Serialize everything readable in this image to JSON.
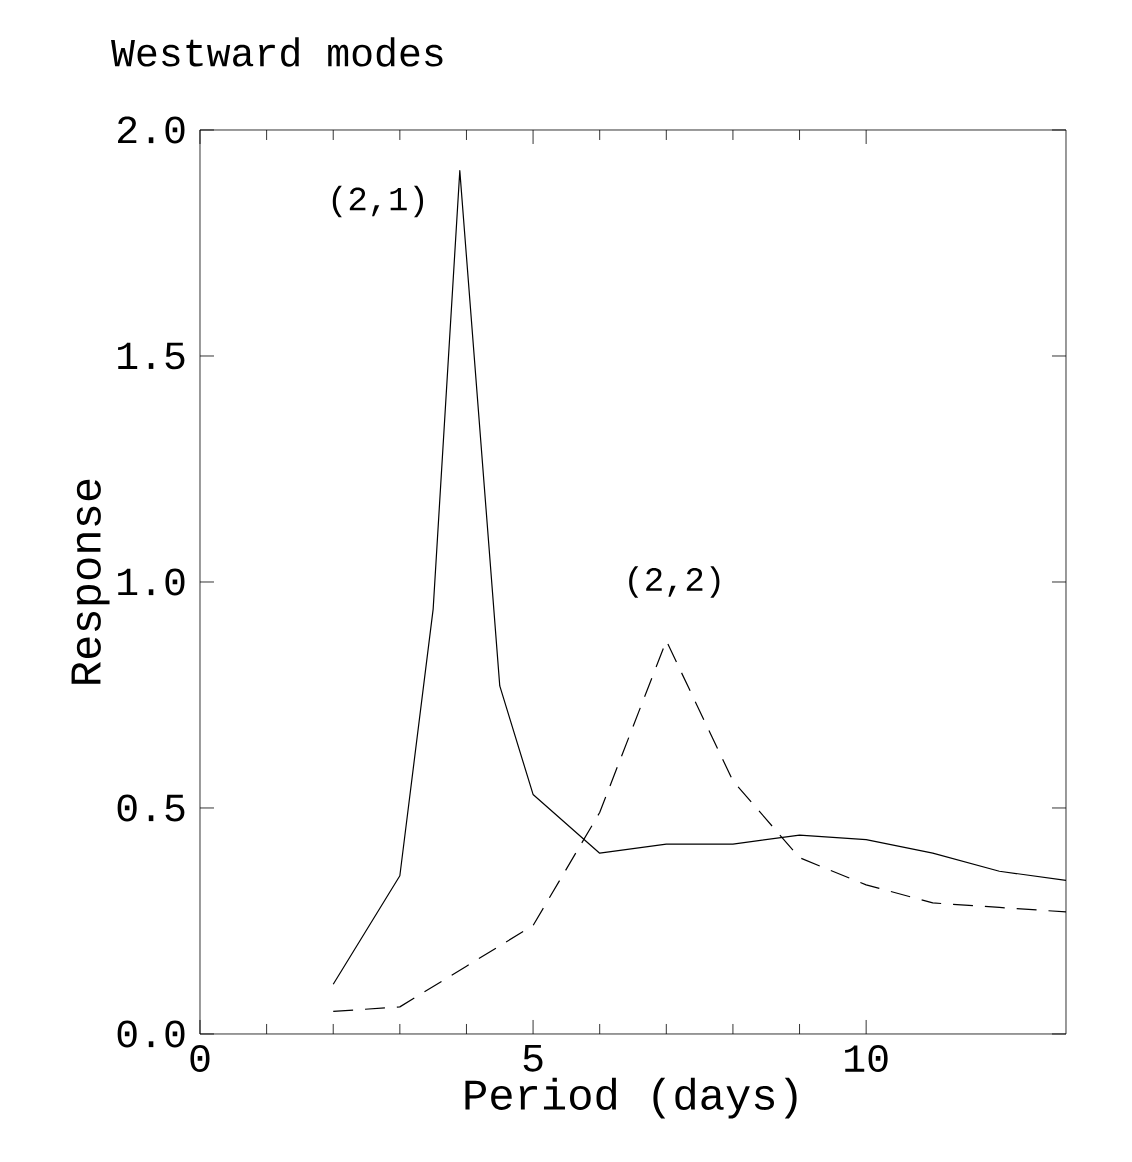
{
  "chart_data": {
    "type": "line",
    "title": "Westward modes",
    "xlabel": "Period (days)",
    "ylabel": "Response",
    "xlim": [
      0,
      13
    ],
    "ylim": [
      0,
      2
    ],
    "xticks": [
      0,
      5,
      10
    ],
    "yticks": [
      {
        "value": 0,
        "label": "0.0"
      },
      {
        "value": 0.5,
        "label": "0.5"
      },
      {
        "value": 1,
        "label": "1.0"
      },
      {
        "value": 1.5,
        "label": "1.5"
      },
      {
        "value": 2,
        "label": "2.0"
      }
    ],
    "series": [
      {
        "name": "(2,1)",
        "color": "#000000",
        "line_style": "solid",
        "x": [
          2,
          3,
          3.5,
          3.9,
          4.5,
          5,
          6,
          7,
          8,
          9,
          10,
          11,
          12,
          13
        ],
        "values": [
          0.11,
          0.35,
          0.94,
          1.91,
          0.77,
          0.53,
          0.4,
          0.42,
          0.42,
          0.44,
          0.43,
          0.4,
          0.36,
          0.34
        ]
      },
      {
        "name": "(2,2)",
        "color": "#000000",
        "line_style": "dashed",
        "x": [
          2,
          3,
          4,
          5,
          6,
          7,
          8,
          9,
          10,
          11,
          12,
          13
        ],
        "values": [
          0.05,
          0.06,
          0.15,
          0.24,
          0.49,
          0.87,
          0.56,
          0.39,
          0.33,
          0.29,
          0.28,
          0.27
        ]
      }
    ]
  }
}
